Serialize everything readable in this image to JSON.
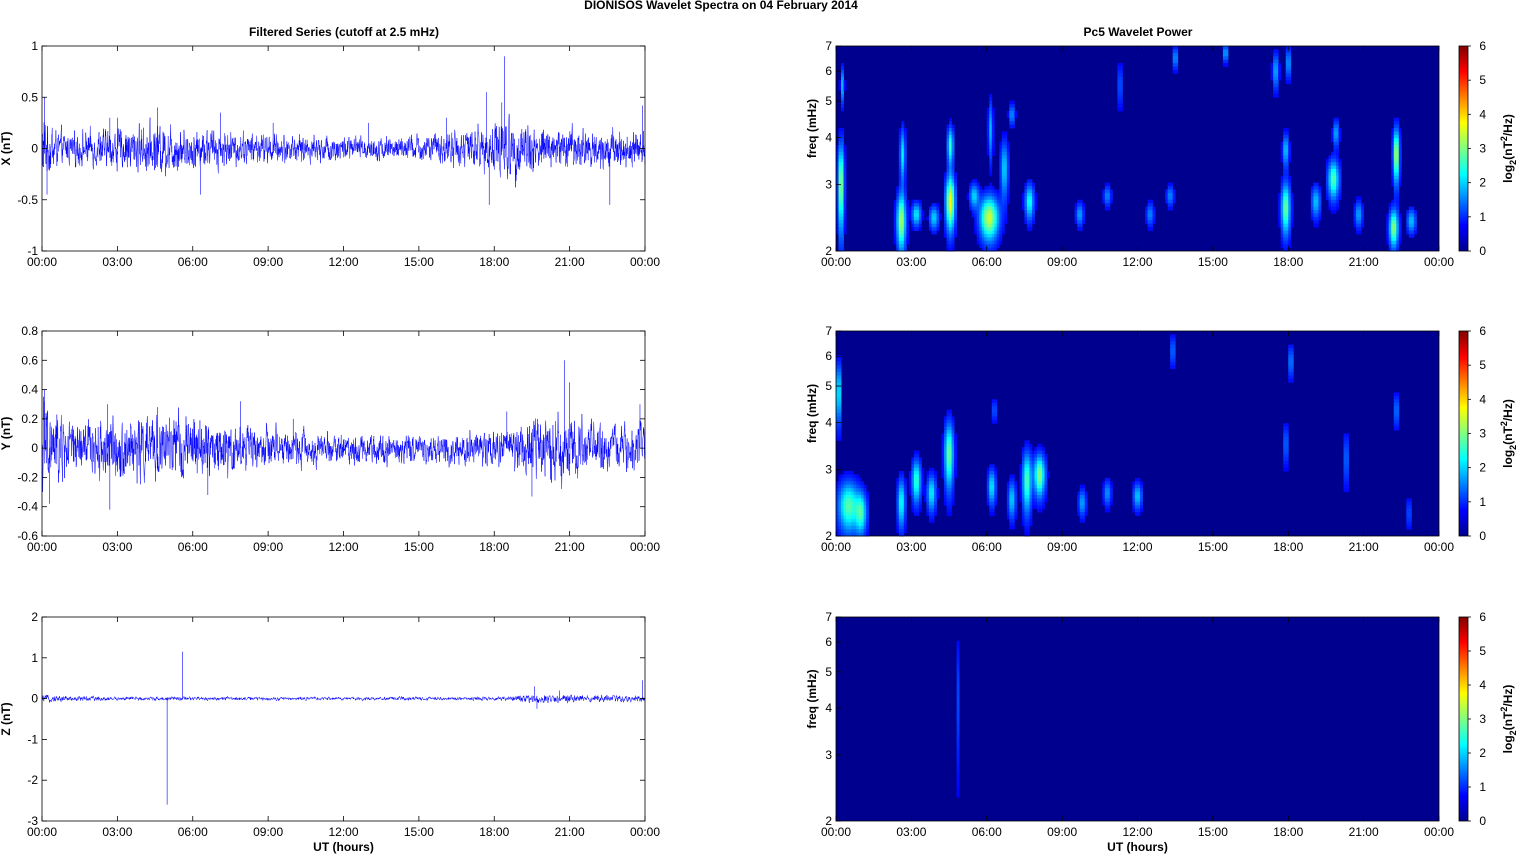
{
  "figure_title": "DIONISOS Wavelet Spectra on 04 February  2014",
  "left_column_title": "Filtered Series (cutoff at 2.5 mHz)",
  "right_column_title": "Pc5 Wavelet Power",
  "colors": {
    "series_line": "#0000ff",
    "spectrogram_background": "#00008f",
    "axis": "#000000"
  },
  "chart_data": [
    {
      "type": "line",
      "title": "Filtered Series (cutoff at 2.5 mHz)",
      "ylabel": "X (nT)",
      "xlabel": "",
      "xlim": [
        "00:00",
        "24:00"
      ],
      "ylim": [
        -1,
        1
      ],
      "x_tick_labels": [
        "00:00",
        "03:00",
        "06:00",
        "09:00",
        "12:00",
        "15:00",
        "18:00",
        "21:00",
        "00:00"
      ],
      "y_ticks": [
        -1,
        -0.5,
        0,
        0.5,
        1
      ],
      "y_tick_labels": [
        "-1",
        "-0.5",
        "0",
        "0.5",
        "1"
      ],
      "series": [
        {
          "amplitude_envelope": [
            [
              0,
              0.35
            ],
            [
              0.8,
              0.15
            ],
            [
              3.0,
              0.2
            ],
            [
              4.6,
              0.25
            ],
            [
              6.0,
              0.2
            ],
            [
              9.0,
              0.14
            ],
            [
              12.0,
              0.12
            ],
            [
              15.0,
              0.12
            ],
            [
              17.2,
              0.2
            ],
            [
              18.4,
              0.3
            ],
            [
              20.0,
              0.22
            ],
            [
              22.0,
              0.2
            ],
            [
              24.0,
              0.16
            ]
          ],
          "spikes": [
            [
              0.1,
              0.5
            ],
            [
              0.2,
              -0.45
            ],
            [
              2.7,
              0.3
            ],
            [
              3.0,
              0.3
            ],
            [
              4.6,
              0.4
            ],
            [
              6.3,
              -0.45
            ],
            [
              7.1,
              0.35
            ],
            [
              9.2,
              0.25
            ],
            [
              13.0,
              0.25
            ],
            [
              16.1,
              0.3
            ],
            [
              17.7,
              0.55
            ],
            [
              17.8,
              -0.55
            ],
            [
              18.4,
              0.9
            ],
            [
              18.3,
              0.45
            ],
            [
              22.6,
              -0.55
            ],
            [
              23.9,
              0.42
            ]
          ]
        }
      ]
    },
    {
      "type": "line",
      "title": "",
      "ylabel": "Y (nT)",
      "xlabel": "",
      "xlim": [
        "00:00",
        "24:00"
      ],
      "ylim": [
        -0.6,
        0.8
      ],
      "x_tick_labels": [
        "00:00",
        "03:00",
        "06:00",
        "09:00",
        "12:00",
        "15:00",
        "18:00",
        "21:00",
        "00:00"
      ],
      "y_ticks": [
        -0.6,
        -0.4,
        -0.2,
        0,
        0.2,
        0.4,
        0.6,
        0.8
      ],
      "y_tick_labels": [
        "-0.6",
        "-0.4",
        "-0.2",
        "0",
        "0.2",
        "0.4",
        "0.6",
        "0.8"
      ],
      "series": [
        {
          "amplitude_envelope": [
            [
              0,
              0.35
            ],
            [
              1.0,
              0.18
            ],
            [
              2.7,
              0.2
            ],
            [
              4.6,
              0.22
            ],
            [
              6.6,
              0.2
            ],
            [
              9.0,
              0.13
            ],
            [
              12.0,
              0.1
            ],
            [
              15.0,
              0.1
            ],
            [
              18.6,
              0.12
            ],
            [
              19.4,
              0.2
            ],
            [
              20.9,
              0.22
            ],
            [
              22.0,
              0.15
            ],
            [
              24.0,
              0.16
            ]
          ],
          "spikes": [
            [
              0.1,
              0.4
            ],
            [
              0.3,
              -0.38
            ],
            [
              2.7,
              -0.42
            ],
            [
              2.6,
              0.3
            ],
            [
              4.6,
              0.28
            ],
            [
              6.6,
              -0.32
            ],
            [
              7.9,
              0.32
            ],
            [
              10.0,
              0.2
            ],
            [
              18.5,
              0.25
            ],
            [
              19.5,
              -0.33
            ],
            [
              20.8,
              0.6
            ],
            [
              21.0,
              0.45
            ],
            [
              23.8,
              0.3
            ]
          ]
        }
      ]
    },
    {
      "type": "line",
      "title": "",
      "ylabel": "Z (nT)",
      "xlabel": "UT (hours)",
      "xlim": [
        "00:00",
        "24:00"
      ],
      "ylim": [
        -3,
        2
      ],
      "x_tick_labels": [
        "00:00",
        "03:00",
        "06:00",
        "09:00",
        "12:00",
        "15:00",
        "18:00",
        "21:00",
        "00:00"
      ],
      "y_ticks": [
        -3,
        -2,
        -1,
        0,
        1,
        2
      ],
      "y_tick_labels": [
        "-3",
        "-2",
        "-1",
        "0",
        "1",
        "2"
      ],
      "series": [
        {
          "amplitude_envelope": [
            [
              0,
              0.08
            ],
            [
              3.0,
              0.05
            ],
            [
              12.0,
              0.04
            ],
            [
              18.5,
              0.05
            ],
            [
              19.8,
              0.12
            ],
            [
              21.0,
              0.1
            ],
            [
              24.0,
              0.06
            ]
          ],
          "spikes": [
            [
              4.98,
              -2.6
            ],
            [
              5.6,
              1.15
            ],
            [
              19.6,
              0.3
            ],
            [
              19.7,
              -0.25
            ],
            [
              20.6,
              0.2
            ],
            [
              23.9,
              0.45
            ]
          ]
        }
      ]
    },
    {
      "type": "heatmap",
      "title": "Pc5 Wavelet Power",
      "ylabel": "freq (mHz)",
      "xlabel": "",
      "xlim": [
        "00:00",
        "24:00"
      ],
      "ylim": [
        2,
        7
      ],
      "y_scale": "log",
      "x_tick_labels": [
        "00:00",
        "03:00",
        "06:00",
        "09:00",
        "12:00",
        "15:00",
        "18:00",
        "21:00",
        "00:00"
      ],
      "y_ticks": [
        2,
        3,
        4,
        5,
        6,
        7
      ],
      "y_tick_labels": [
        "2",
        "3",
        "4",
        "5",
        "6",
        "7"
      ],
      "colorbar_label": "log2(nT^2/Hz)",
      "colorbar_ticks": [
        0,
        1,
        2,
        3,
        4,
        5,
        6
      ],
      "colorbar_tick_labels": [
        "0",
        "1",
        "2",
        "3",
        "4",
        "5",
        "6"
      ],
      "zlim": [
        0,
        6
      ],
      "colormap": "jet",
      "blobs": [
        {
          "t": 0.2,
          "f": 3.0,
          "wt": 0.08,
          "wf": 0.55,
          "v": 3.0
        },
        {
          "t": 0.25,
          "f": 5.5,
          "wt": 0.05,
          "wf": 0.4,
          "v": 1.4
        },
        {
          "t": 2.6,
          "f": 2.4,
          "wt": 0.12,
          "wf": 0.28,
          "v": 3.0
        },
        {
          "t": 2.65,
          "f": 3.6,
          "wt": 0.07,
          "wf": 0.4,
          "v": 1.8
        },
        {
          "t": 3.2,
          "f": 2.5,
          "wt": 0.12,
          "wf": 0.12,
          "v": 1.8
        },
        {
          "t": 3.9,
          "f": 2.45,
          "wt": 0.12,
          "wf": 0.12,
          "v": 1.6
        },
        {
          "t": 4.55,
          "f": 2.7,
          "wt": 0.12,
          "wf": 0.3,
          "v": 3.6
        },
        {
          "t": 4.55,
          "f": 3.8,
          "wt": 0.08,
          "wf": 0.3,
          "v": 2.2
        },
        {
          "t": 5.5,
          "f": 2.8,
          "wt": 0.12,
          "wf": 0.14,
          "v": 1.6
        },
        {
          "t": 6.1,
          "f": 2.45,
          "wt": 0.25,
          "wf": 0.22,
          "v": 3.2
        },
        {
          "t": 6.15,
          "f": 4.2,
          "wt": 0.06,
          "wf": 0.5,
          "v": 1.4
        },
        {
          "t": 6.7,
          "f": 3.3,
          "wt": 0.1,
          "wf": 0.4,
          "v": 1.6
        },
        {
          "t": 7.0,
          "f": 4.6,
          "wt": 0.08,
          "wf": 0.2,
          "v": 1.2
        },
        {
          "t": 7.7,
          "f": 2.7,
          "wt": 0.12,
          "wf": 0.2,
          "v": 2.0
        },
        {
          "t": 9.7,
          "f": 2.5,
          "wt": 0.1,
          "wf": 0.12,
          "v": 1.3
        },
        {
          "t": 10.8,
          "f": 2.8,
          "wt": 0.1,
          "wf": 0.12,
          "v": 1.1
        },
        {
          "t": 11.3,
          "f": 5.5,
          "wt": 0.05,
          "wf": 0.5,
          "v": 1.0
        },
        {
          "t": 12.5,
          "f": 2.5,
          "wt": 0.1,
          "wf": 0.12,
          "v": 1.1
        },
        {
          "t": 13.3,
          "f": 2.8,
          "wt": 0.1,
          "wf": 0.12,
          "v": 1.1
        },
        {
          "t": 13.5,
          "f": 6.5,
          "wt": 0.05,
          "wf": 0.3,
          "v": 1.6
        },
        {
          "t": 15.5,
          "f": 6.7,
          "wt": 0.05,
          "wf": 0.25,
          "v": 1.8
        },
        {
          "t": 17.5,
          "f": 6.0,
          "wt": 0.08,
          "wf": 0.45,
          "v": 1.4
        },
        {
          "t": 17.9,
          "f": 2.6,
          "wt": 0.12,
          "wf": 0.28,
          "v": 2.6
        },
        {
          "t": 17.9,
          "f": 3.7,
          "wt": 0.08,
          "wf": 0.25,
          "v": 1.6
        },
        {
          "t": 18.0,
          "f": 6.3,
          "wt": 0.06,
          "wf": 0.4,
          "v": 1.4
        },
        {
          "t": 19.1,
          "f": 2.7,
          "wt": 0.12,
          "wf": 0.18,
          "v": 1.5
        },
        {
          "t": 19.8,
          "f": 3.1,
          "wt": 0.15,
          "wf": 0.25,
          "v": 2.4
        },
        {
          "t": 19.9,
          "f": 4.1,
          "wt": 0.08,
          "wf": 0.22,
          "v": 1.4
        },
        {
          "t": 20.8,
          "f": 2.5,
          "wt": 0.1,
          "wf": 0.14,
          "v": 1.3
        },
        {
          "t": 22.2,
          "f": 2.3,
          "wt": 0.12,
          "wf": 0.18,
          "v": 2.8
        },
        {
          "t": 22.3,
          "f": 3.6,
          "wt": 0.08,
          "wf": 0.4,
          "v": 3.2
        },
        {
          "t": 22.9,
          "f": 2.4,
          "wt": 0.12,
          "wf": 0.12,
          "v": 1.5
        }
      ]
    },
    {
      "type": "heatmap",
      "title": "",
      "ylabel": "freq (mHz)",
      "xlabel": "",
      "xlim": [
        "00:00",
        "24:00"
      ],
      "ylim": [
        2,
        7
      ],
      "y_scale": "log",
      "x_tick_labels": [
        "00:00",
        "03:00",
        "06:00",
        "09:00",
        "12:00",
        "15:00",
        "18:00",
        "21:00",
        "00:00"
      ],
      "y_ticks": [
        2,
        3,
        4,
        5,
        6,
        7
      ],
      "y_tick_labels": [
        "2",
        "3",
        "4",
        "5",
        "6",
        "7"
      ],
      "colorbar_label": "log2(nT^2/Hz)",
      "colorbar_ticks": [
        0,
        1,
        2,
        3,
        4,
        5,
        6
      ],
      "colorbar_tick_labels": [
        "0",
        "1",
        "2",
        "3",
        "4",
        "5",
        "6"
      ],
      "zlim": [
        0,
        6
      ],
      "colormap": "jet",
      "blobs": [
        {
          "t": 0.1,
          "f": 4.8,
          "wt": 0.06,
          "wf": 0.6,
          "v": 2.2
        },
        {
          "t": 0.5,
          "f": 2.4,
          "wt": 0.28,
          "wf": 0.25,
          "v": 2.4
        },
        {
          "t": 1.0,
          "f": 2.3,
          "wt": 0.15,
          "wf": 0.2,
          "v": 2.0
        },
        {
          "t": 2.6,
          "f": 2.45,
          "wt": 0.1,
          "wf": 0.25,
          "v": 2.0
        },
        {
          "t": 3.2,
          "f": 2.8,
          "wt": 0.12,
          "wf": 0.25,
          "v": 2.2
        },
        {
          "t": 3.8,
          "f": 2.6,
          "wt": 0.12,
          "wf": 0.2,
          "v": 1.8
        },
        {
          "t": 4.5,
          "f": 3.3,
          "wt": 0.12,
          "wf": 0.45,
          "v": 2.6
        },
        {
          "t": 6.2,
          "f": 2.7,
          "wt": 0.1,
          "wf": 0.2,
          "v": 1.8
        },
        {
          "t": 6.3,
          "f": 4.3,
          "wt": 0.05,
          "wf": 0.2,
          "v": 1.0
        },
        {
          "t": 7.0,
          "f": 2.5,
          "wt": 0.1,
          "wf": 0.2,
          "v": 1.6
        },
        {
          "t": 7.6,
          "f": 2.8,
          "wt": 0.12,
          "wf": 0.35,
          "v": 2.4
        },
        {
          "t": 8.1,
          "f": 2.9,
          "wt": 0.15,
          "wf": 0.25,
          "v": 2.8
        },
        {
          "t": 9.8,
          "f": 2.45,
          "wt": 0.1,
          "wf": 0.14,
          "v": 1.3
        },
        {
          "t": 10.8,
          "f": 2.6,
          "wt": 0.1,
          "wf": 0.14,
          "v": 1.2
        },
        {
          "t": 12.0,
          "f": 2.55,
          "wt": 0.12,
          "wf": 0.14,
          "v": 1.5
        },
        {
          "t": 13.4,
          "f": 6.2,
          "wt": 0.05,
          "wf": 0.4,
          "v": 1.2
        },
        {
          "t": 17.9,
          "f": 3.5,
          "wt": 0.06,
          "wf": 0.3,
          "v": 1.0
        },
        {
          "t": 18.1,
          "f": 5.8,
          "wt": 0.06,
          "wf": 0.4,
          "v": 1.2
        },
        {
          "t": 20.3,
          "f": 3.2,
          "wt": 0.06,
          "wf": 0.35,
          "v": 1.0
        },
        {
          "t": 22.3,
          "f": 4.3,
          "wt": 0.06,
          "wf": 0.3,
          "v": 1.1
        },
        {
          "t": 22.8,
          "f": 2.3,
          "wt": 0.06,
          "wf": 0.15,
          "v": 0.8
        }
      ]
    },
    {
      "type": "heatmap",
      "title": "",
      "ylabel": "freq (mHz)",
      "xlabel": "UT (hours)",
      "xlim": [
        "00:00",
        "24:00"
      ],
      "ylim": [
        2,
        7
      ],
      "y_scale": "log",
      "x_tick_labels": [
        "00:00",
        "03:00",
        "06:00",
        "09:00",
        "12:00",
        "15:00",
        "18:00",
        "21:00",
        "00:00"
      ],
      "y_ticks": [
        2,
        3,
        4,
        5,
        6,
        7
      ],
      "y_tick_labels": [
        "2",
        "3",
        "4",
        "5",
        "6",
        "7"
      ],
      "colorbar_label": "log2(nT^2/Hz)",
      "colorbar_ticks": [
        0,
        1,
        2,
        3,
        4,
        5,
        6
      ],
      "colorbar_tick_labels": [
        "0",
        "1",
        "2",
        "3",
        "4",
        "5",
        "6"
      ],
      "zlim": [
        0,
        6
      ],
      "colormap": "jet",
      "blobs": [
        {
          "t": 4.85,
          "f": 4.2,
          "wt": 0.04,
          "wf": 1.2,
          "v": 0.6
        }
      ]
    }
  ]
}
